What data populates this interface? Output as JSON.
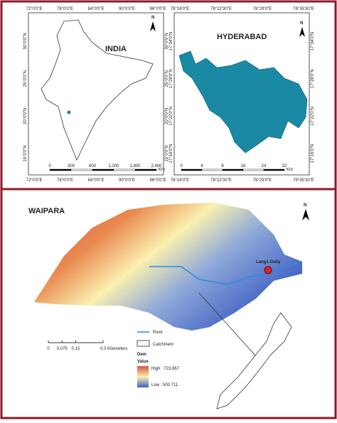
{
  "india": {
    "title": "INDIA",
    "north": "N",
    "top_coords": [
      "72°0'0\"E",
      "78°0'0\"E",
      "84°0'0\"E",
      "90°0'0\"E",
      "96°0'0\"E"
    ],
    "bottom_coords": [
      "72°0'0\"E",
      "78°0'0\"E",
      "84°0'0\"E",
      "90°0'0\"E",
      "96°0'0\"E"
    ],
    "side_coords": [
      "30°0'0\"N",
      "25°0'0\"N",
      "20°0'0\"N",
      "15°0'0\"N"
    ],
    "scale": [
      "0",
      "300",
      "600",
      "1,200",
      "1,800",
      "2,400"
    ],
    "scale_unit": "Km"
  },
  "hyderabad": {
    "title": "HYDERABAD",
    "north": "N",
    "top_coords": [
      "78°16'0\"E",
      "78°22'30\"E",
      "78°29'0\"E",
      "78°35'30\"E"
    ],
    "bottom_coords": [
      "78°16'0\"E",
      "78°22'30\"E",
      "78°29'0\"E",
      "78°35'30\"E"
    ],
    "side_coords": [
      "17°34'0\"N",
      "17°28'0\"N",
      "17°22'0\"N",
      "17°16'0\"N"
    ],
    "scale": [
      "0",
      "4",
      "8",
      "16",
      "24",
      "32"
    ],
    "scale_unit": "Km"
  },
  "waipara": {
    "title": "WAIPARA",
    "north": "N",
    "site": "Langs Gully",
    "scale": [
      "0",
      "0.075",
      "0.15",
      "0.3 Kilometers"
    ],
    "legend": {
      "river": "River",
      "catchment": "Catchment",
      "dem": "Dem",
      "value": "Value",
      "high": "High : 723.867",
      "low": "Low : 500.711"
    }
  }
}
